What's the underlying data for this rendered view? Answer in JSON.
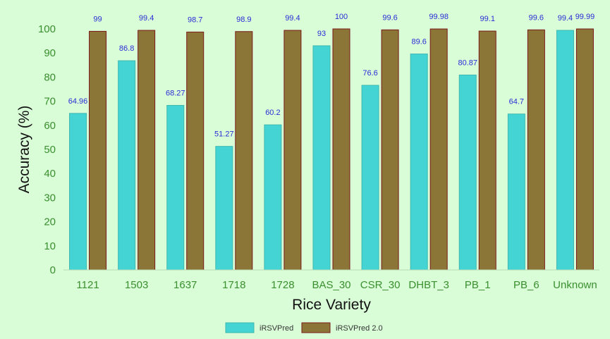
{
  "chart_data": {
    "type": "bar",
    "title": "",
    "xlabel": "Rice Variety",
    "ylabel": "Accuracy (%)",
    "ylim": [
      0,
      100
    ],
    "yticks": [
      0,
      10,
      20,
      30,
      40,
      50,
      60,
      70,
      80,
      90,
      100
    ],
    "grid": false,
    "legend_position": "bottom",
    "categories": [
      "1121",
      "1503",
      "1637",
      "1718",
      "1728",
      "BAS_30",
      "CSR_30",
      "DHBT_3",
      "PB_1",
      "PB_6",
      "Unknown"
    ],
    "series": [
      {
        "name": "iRSVPred",
        "color": "#45d4d4",
        "border": "#3fb8b0",
        "values": [
          64.96,
          86.8,
          68.27,
          51.27,
          60.2,
          93,
          76.6,
          89.6,
          80.87,
          64.7,
          99.4
        ],
        "labels": [
          "64.96",
          "86.8",
          "68.27",
          "51.27",
          "60.2",
          "93",
          "76.6",
          "89.6",
          "80.87",
          "64.7",
          "99.4"
        ]
      },
      {
        "name": "iRSVPred 2.0",
        "color": "#8b7537",
        "border": "#7a1a1a",
        "values": [
          99,
          99.4,
          98.7,
          98.9,
          99.4,
          100,
          99.6,
          99.98,
          99.1,
          99.6,
          99.99
        ],
        "labels": [
          "99",
          "99.4",
          "98.7",
          "98.9",
          "99.4",
          "100",
          "99.6",
          "99.98",
          "99.1",
          "99.6",
          "99.99"
        ]
      }
    ]
  }
}
